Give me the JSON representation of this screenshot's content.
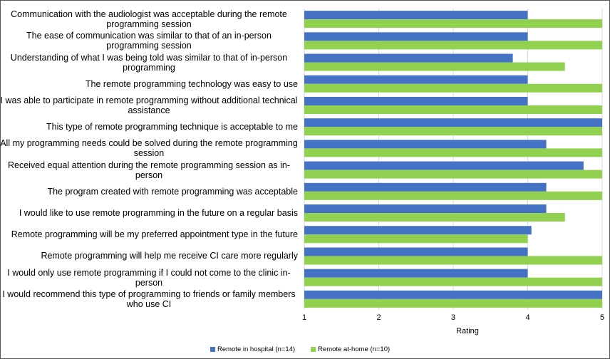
{
  "chart_data": {
    "type": "bar",
    "orientation": "horizontal",
    "categories": [
      "Communication with the audiologist was acceptable during the remote programming session",
      "The ease of communication was similar to that of an in-person programming session",
      "Understanding of what I was being told was similar to that of in-person programming",
      "The remote programming technology was easy to use",
      "I was able to participate in remote programming without additional technical assistance",
      "This type of remote programming technique is acceptable to me",
      "All my programming needs could be solved during the remote programming session",
      "Received equal attention during the remote programming session as in-person",
      "The program created with remote programming was acceptable",
      "I would like to use remote programming in the future on a regular basis",
      "Remote programming will be my preferred appointment type in the future",
      "Remote programming will help me receive CI care more regularly",
      "I would only use remote programming if I could not come to the clinic in-person",
      "I would recommend this type of programming to friends or family members who use CI"
    ],
    "series": [
      {
        "name": "Remote in hospital (n=14)",
        "color": "#4472C4",
        "values": [
          4,
          4,
          3.8,
          4,
          4,
          5,
          4.25,
          4.75,
          4.25,
          4.25,
          4.05,
          4,
          4,
          5
        ]
      },
      {
        "name": "Remote at-home (n=10)",
        "color": "#92D050",
        "values": [
          5,
          5,
          4.5,
          5,
          5,
          5,
          5,
          5,
          5,
          4.5,
          4,
          5,
          5,
          5
        ]
      }
    ],
    "xlabel": "Rating",
    "ylabel": "",
    "xlim": [
      1,
      5
    ],
    "xticks": [
      "1",
      "2",
      "3",
      "4",
      "5"
    ],
    "grid": true,
    "legend": "bottom"
  }
}
